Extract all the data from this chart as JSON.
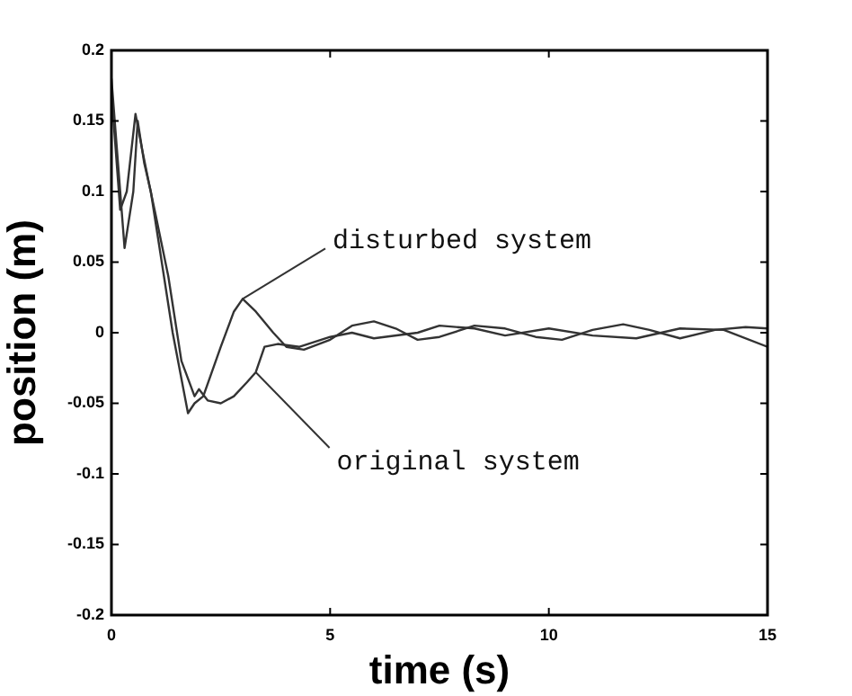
{
  "chart_data": {
    "type": "line",
    "xlabel": "time (s)",
    "ylabel": "position (m)",
    "xlim": [
      0,
      15
    ],
    "xticks": [
      0,
      5,
      10,
      15
    ],
    "ylim": [
      -0.2,
      0.2
    ],
    "yticks": [
      -0.2,
      -0.15,
      -0.1,
      -0.05,
      0,
      0.05,
      0.1,
      0.15,
      0.2
    ],
    "grid": false,
    "legend": false,
    "marker": "none",
    "line_style": "solid",
    "annotations": [
      {
        "text": "disturbed system",
        "x": 3.0,
        "y": 0.024
      },
      {
        "text": "original system",
        "x": 3.3,
        "y": -0.028
      }
    ],
    "series": [
      {
        "color": "#333333",
        "x": [
          0,
          0.15,
          0.3,
          0.5,
          0.6,
          0.75,
          0.9,
          1.1,
          1.4,
          1.75,
          1.9,
          2.1,
          2.5,
          2.8,
          3.0,
          3.3,
          3.7,
          4.0,
          4.4,
          5.0,
          5.5,
          6.0,
          6.5,
          7.0,
          7.5,
          8.3,
          9.0,
          9.7,
          10.3,
          11,
          11.7,
          12.3,
          13,
          13.8,
          14.5,
          15
        ],
        "values": [
          0.18,
          0.12,
          0.06,
          0.1,
          0.15,
          0.12,
          0.1,
          0.06,
          0.0,
          -0.057,
          -0.05,
          -0.045,
          -0.01,
          0.015,
          0.024,
          0.015,
          0.0,
          -0.01,
          -0.012,
          -0.005,
          0.005,
          0.008,
          0.003,
          -0.005,
          -0.003,
          0.005,
          0.003,
          -0.003,
          -0.005,
          0.002,
          0.006,
          0.002,
          -0.004,
          0.002,
          0.004,
          0.003
        ]
      },
      {
        "color": "#333333",
        "x": [
          0,
          0.2,
          0.35,
          0.55,
          0.7,
          0.87,
          1.0,
          1.3,
          1.6,
          1.9,
          2.0,
          2.2,
          2.5,
          2.8,
          3.1,
          3.3,
          3.5,
          3.8,
          4.3,
          5,
          5.5,
          6,
          7,
          7.5,
          8.3,
          9,
          10,
          11,
          12,
          13,
          14,
          15
        ],
        "values": [
          0.17,
          0.087,
          0.1,
          0.155,
          0.13,
          0.104,
          0.085,
          0.04,
          -0.02,
          -0.045,
          -0.04,
          -0.048,
          -0.05,
          -0.045,
          -0.035,
          -0.028,
          -0.01,
          -0.008,
          -0.01,
          -0.003,
          0.0,
          -0.004,
          0.0,
          0.005,
          0.003,
          -0.002,
          0.003,
          -0.002,
          -0.004,
          0.003,
          0.002,
          -0.01
        ]
      }
    ]
  }
}
